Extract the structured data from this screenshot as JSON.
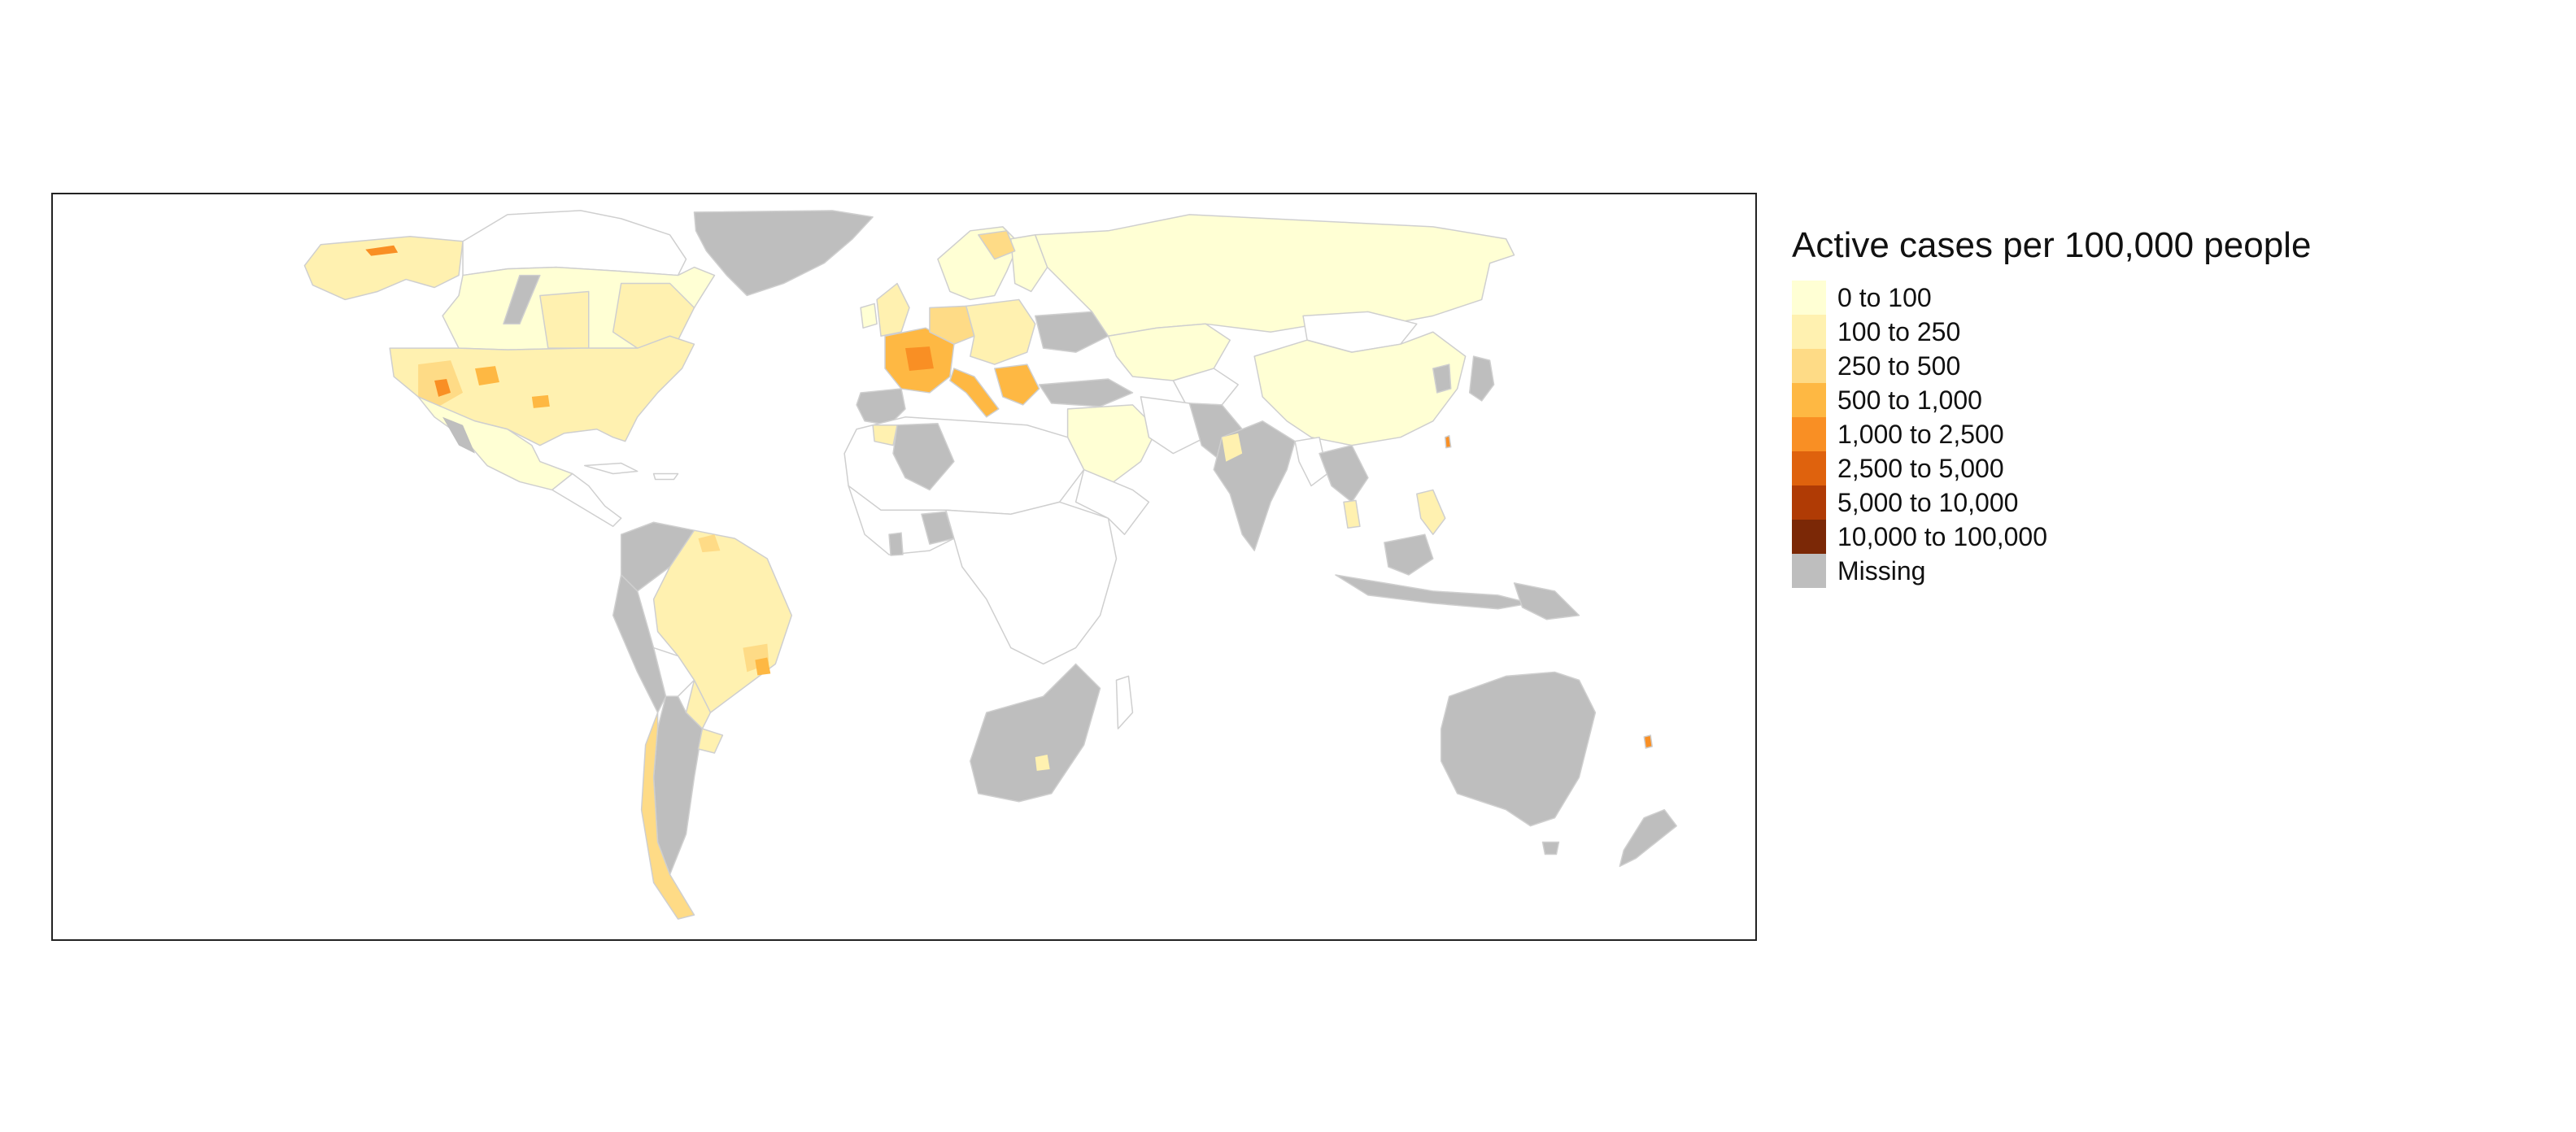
{
  "legend": {
    "title": "Active cases per 100,000 people",
    "items": [
      {
        "label": "0 to 100",
        "color": "#ffffd4"
      },
      {
        "label": "100 to 250",
        "color": "#fff1b0"
      },
      {
        "label": "250 to 500",
        "color": "#fedb86"
      },
      {
        "label": "500 to 1,000",
        "color": "#feb843"
      },
      {
        "label": "1,000 to 2,500",
        "color": "#f98f24"
      },
      {
        "label": "2,500 to 5,000",
        "color": "#df620d"
      },
      {
        "label": "5,000 to 10,000",
        "color": "#b03b05"
      },
      {
        "label": "10,000 to 100,000",
        "color": "#7b2806"
      },
      {
        "label": "Missing",
        "color": "#bebebe"
      }
    ]
  },
  "colors": {
    "border": "#cfcfcf",
    "frame": "#222222",
    "no_data_fill": "#ffffff"
  }
}
